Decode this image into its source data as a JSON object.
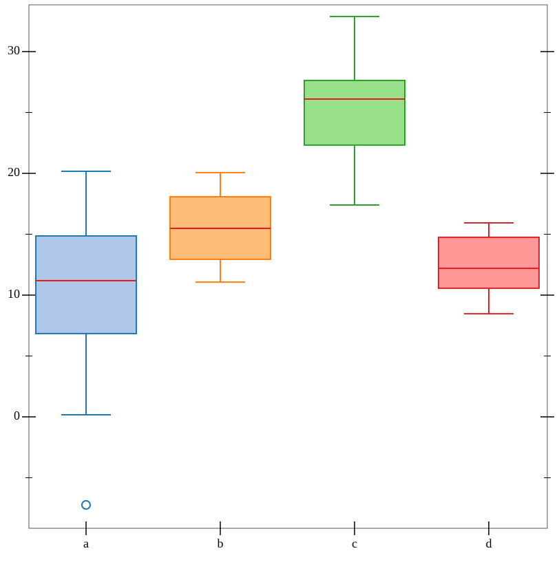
{
  "chart_data": {
    "type": "box",
    "categories": [
      "a",
      "b",
      "c",
      "d"
    ],
    "boxes": [
      {
        "whislo": 0.17,
        "q1": 6.84,
        "med": 11.19,
        "q3": 14.86,
        "whishi": 20.17,
        "fliers": [
          -7.23
        ]
      },
      {
        "whislo": 11.07,
        "q1": 12.94,
        "med": 15.48,
        "q3": 18.08,
        "whishi": 20.06,
        "fliers": []
      },
      {
        "whislo": 17.4,
        "q1": 22.32,
        "med": 26.1,
        "q3": 27.63,
        "whishi": 32.88,
        "fliers": []
      },
      {
        "whislo": 8.47,
        "q1": 10.56,
        "med": 12.2,
        "q3": 14.75,
        "whishi": 15.93,
        "fliers": []
      }
    ],
    "fill_colors": [
      "#aec7e8",
      "#ffbb78",
      "#98df8a",
      "#ff9896"
    ],
    "edge_colors": [
      "#1f77b4",
      "#ff7f0e",
      "#2ca02c",
      "#d62728"
    ],
    "median_color": "#e41a1c",
    "ylim": [
      -9.15,
      33.84
    ],
    "yticks": [
      0,
      10,
      20,
      30
    ],
    "minor_yticks": [
      -5,
      5,
      15,
      25
    ]
  }
}
